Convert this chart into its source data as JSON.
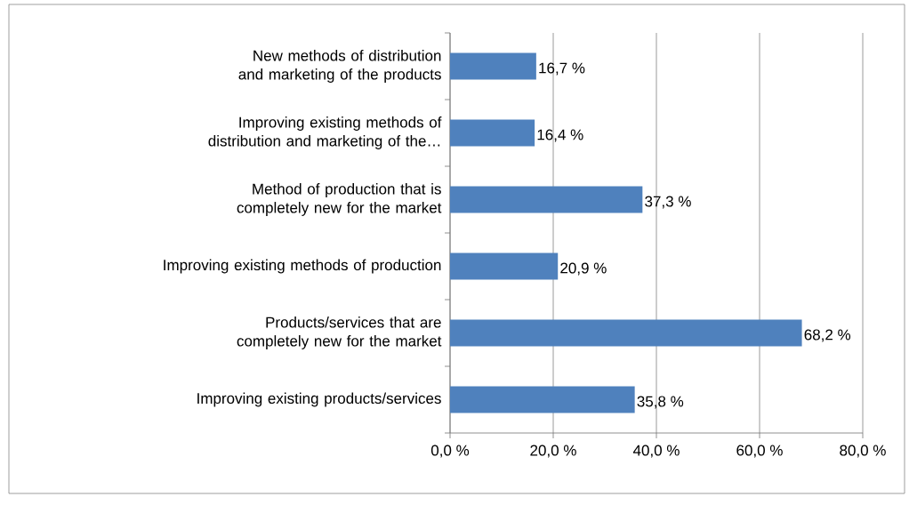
{
  "chart_data": {
    "type": "bar",
    "orientation": "horizontal",
    "categories": [
      "New methods of distribution and marketing of the products",
      "Improving existing methods of distribution and marketing of the…",
      "Method of production that is completely new for the market",
      "Improving existing methods of production",
      "Products/services that are completely new for the market",
      "Improving existing products/services"
    ],
    "values": [
      16.7,
      16.4,
      37.3,
      20.9,
      68.2,
      35.8
    ],
    "value_labels": [
      "16,7 %",
      "16,4 %",
      "37,3 %",
      "20,9 %",
      "68,2 %",
      "35,8 %"
    ],
    "color": "#4f81bd",
    "xlim": [
      0,
      80
    ],
    "xticks": [
      {
        "value": 0,
        "label": "0,0 %"
      },
      {
        "value": 20,
        "label": "20,0 %"
      },
      {
        "value": 40,
        "label": "40,0 %"
      },
      {
        "value": 60,
        "label": "60,0 %"
      },
      {
        "value": 80,
        "label": "80,0 %"
      }
    ],
    "grid": "x"
  }
}
